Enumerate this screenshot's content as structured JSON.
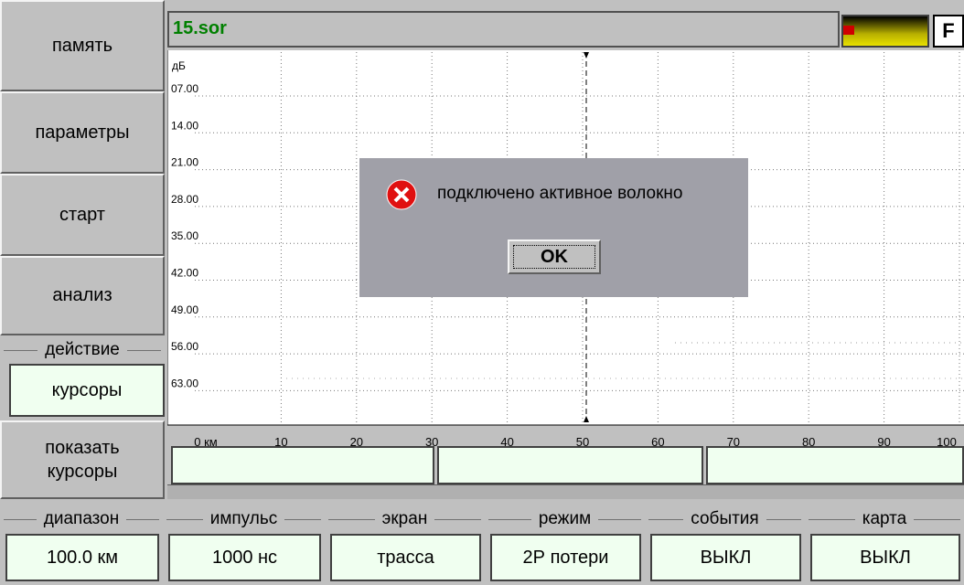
{
  "sidebar": {
    "buttons": [
      "память",
      "параметры",
      "старт",
      "анализ"
    ],
    "action": {
      "label": "действие",
      "value": "курсоры"
    },
    "show_cursors": "показать курсоры"
  },
  "header": {
    "filename": "15.sor",
    "indicator": "F"
  },
  "trace": {
    "y_unit": "дБ",
    "y_ticks": [
      "07.00",
      "14.00",
      "21.00",
      "28.00",
      "35.00",
      "42.00",
      "49.00",
      "56.00",
      "63.00"
    ],
    "x_ticks": [
      "0 км",
      "10",
      "20",
      "30",
      "40",
      "50",
      "60",
      "70",
      "80",
      "90",
      "100"
    ]
  },
  "dialog": {
    "message": "подключено активное волокно",
    "button": "OK"
  },
  "settings": [
    {
      "label": "диапазон",
      "value": "100.0 км"
    },
    {
      "label": "импульс",
      "value": "1000 нс"
    },
    {
      "label": "экран",
      "value": "трасса"
    },
    {
      "label": "режим",
      "value": "2Р потери"
    },
    {
      "label": "события",
      "value": "ВЫКЛ"
    },
    {
      "label": "карта",
      "value": "ВЫКЛ"
    }
  ]
}
